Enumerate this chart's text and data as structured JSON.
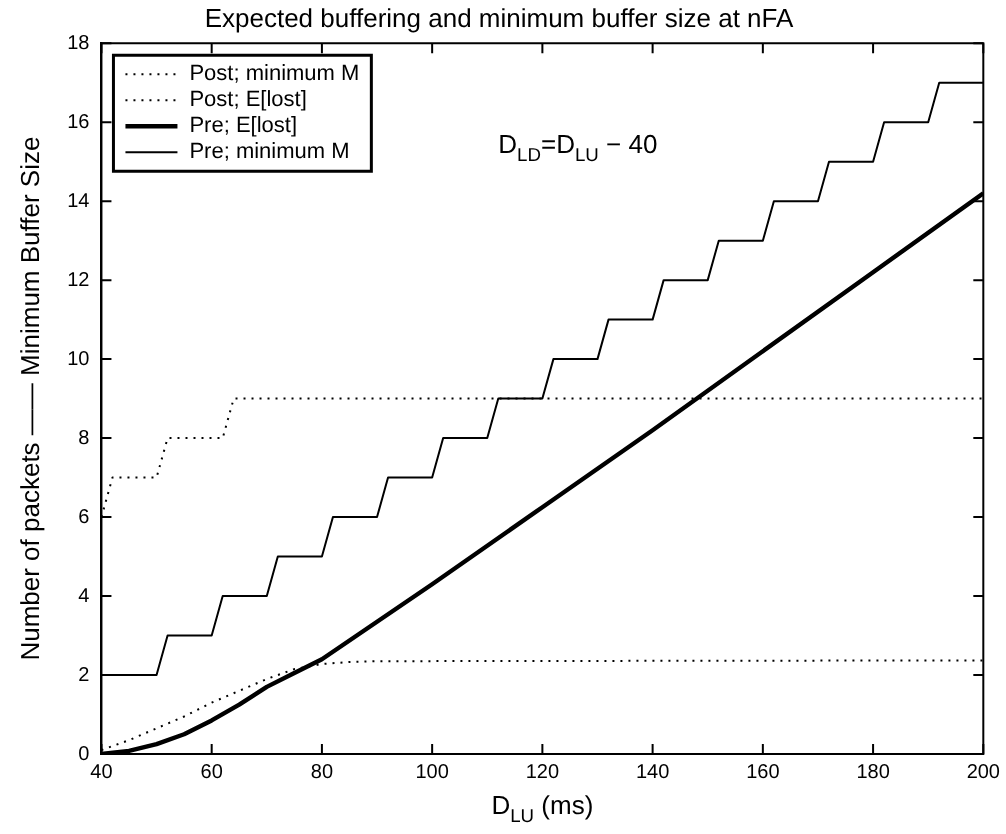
{
  "chart_data": {
    "type": "line",
    "title": "Expected buffering and minimum buffer size at nFA",
    "xlabel": "D$_{LU}$ (ms)",
    "ylabel": "Number of packets —— Minimum Buffer Size",
    "annotations": [
      "D$_{LD}$=D$_{LU}$ − 40"
    ],
    "xlim": [
      40,
      200
    ],
    "xticks": [
      40,
      60,
      80,
      100,
      120,
      140,
      160,
      180,
      200
    ],
    "ylim": [
      0,
      18
    ],
    "yticks": [
      0,
      2,
      4,
      6,
      8,
      10,
      12,
      14,
      16,
      18
    ],
    "grid": false,
    "legend": "top left",
    "marker": "none",
    "series": [
      {
        "name": "Post; minimum M",
        "color": "#000000",
        "line_style": "dotted",
        "x": [
          40,
          42,
          50,
          52,
          62,
          64,
          200
        ],
        "values": [
          6,
          7,
          7,
          8,
          8,
          9,
          9
        ]
      },
      {
        "name": "Post; E[lost]",
        "color": "#000000",
        "line_style": "dotted",
        "x": [
          40,
          45,
          50,
          55,
          60,
          65,
          70,
          75,
          80,
          85,
          90,
          200
        ],
        "values": [
          0.1,
          0.35,
          0.65,
          0.95,
          1.3,
          1.6,
          1.9,
          2.15,
          2.28,
          2.33,
          2.35,
          2.37
        ]
      },
      {
        "name": "Pre; E[lost]",
        "color": "#000000",
        "line_style": "solid",
        "x": [
          40,
          45,
          50,
          55,
          60,
          65,
          70,
          75,
          80,
          90,
          100,
          120,
          140,
          160,
          180,
          200
        ],
        "values": [
          0,
          0.08,
          0.25,
          0.5,
          0.85,
          1.25,
          1.7,
          2.05,
          2.4,
          3.35,
          4.3,
          6.25,
          8.2,
          10.2,
          12.2,
          14.2
        ]
      },
      {
        "name": "Pre; minimum M",
        "color": "#000000",
        "line_style": "solid",
        "x": [
          40,
          50,
          52,
          60,
          62,
          70,
          72,
          80,
          82,
          90,
          92,
          100,
          102,
          110,
          112,
          120,
          122,
          130,
          132,
          140,
          142,
          150,
          152,
          160,
          162,
          170,
          172,
          180,
          182,
          190,
          192,
          200
        ],
        "values": [
          2,
          2,
          3,
          3,
          4,
          4,
          5,
          5,
          6,
          6,
          7,
          7,
          8,
          8,
          9,
          9,
          10,
          10,
          11,
          11,
          12,
          12,
          13,
          13,
          14,
          14,
          15,
          15,
          16,
          16,
          17,
          17
        ]
      }
    ]
  }
}
